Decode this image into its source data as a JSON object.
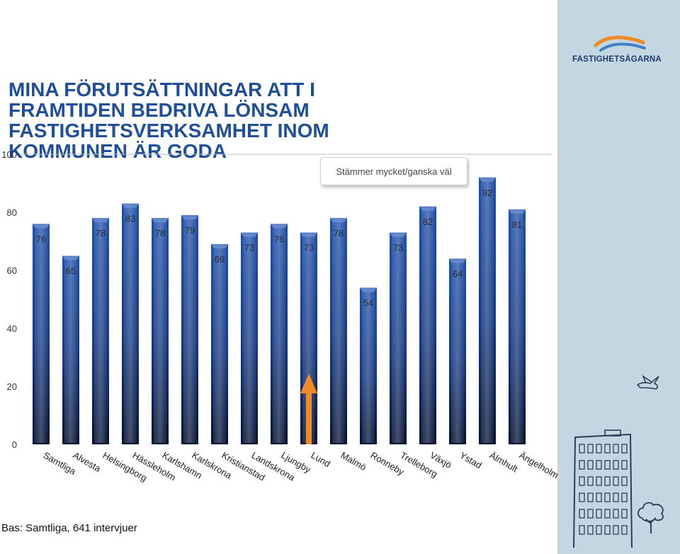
{
  "title": "MINA FÖRUTSÄTTNINGAR ATT I FRAMTIDEN BEDRIVA LÖNSAM FASTIGHETSVERKSAMHET INOM KOMMUNEN ÄR GODA",
  "logo": {
    "name": "FASTIGHETSÄGARNA",
    "icon": "wave-logo-icon"
  },
  "legend": "Stämmer mycket/ganska väl",
  "base_note": "Bas: Samtliga, 641 intervjuer",
  "colors": {
    "bar": "#1a3f8a",
    "bar_dark": "#06183d",
    "title": "#1f4e9a",
    "panel": "#c3d7e3",
    "arrow": "#f08a24"
  },
  "chart_data": {
    "type": "bar",
    "categories": [
      "Samtliga",
      "Alvesta",
      "Helsingborg",
      "Hässleholm",
      "Karlshamn",
      "Karlskrona",
      "Kristianstad",
      "Landskrona",
      "Ljungby",
      "Lund",
      "Malmö",
      "Ronneby",
      "Trelleborg",
      "Växjö",
      "Ystad",
      "Älmhult",
      "Ängelholm"
    ],
    "values": [
      76,
      65,
      78,
      83,
      78,
      79,
      69,
      73,
      76,
      73,
      78,
      54,
      73,
      82,
      64,
      92,
      81
    ],
    "series": [
      {
        "name": "Stämmer mycket/ganska väl",
        "values": [
          76,
          65,
          78,
          83,
          78,
          79,
          69,
          73,
          76,
          73,
          78,
          54,
          73,
          82,
          64,
          92,
          81
        ]
      }
    ],
    "ylim": [
      0,
      100
    ],
    "yticks": [
      0,
      20,
      40,
      60,
      80,
      100
    ],
    "grid": false,
    "legend_position": "top-right",
    "highlight": {
      "category": "Lund",
      "marker": "up-arrow"
    }
  }
}
